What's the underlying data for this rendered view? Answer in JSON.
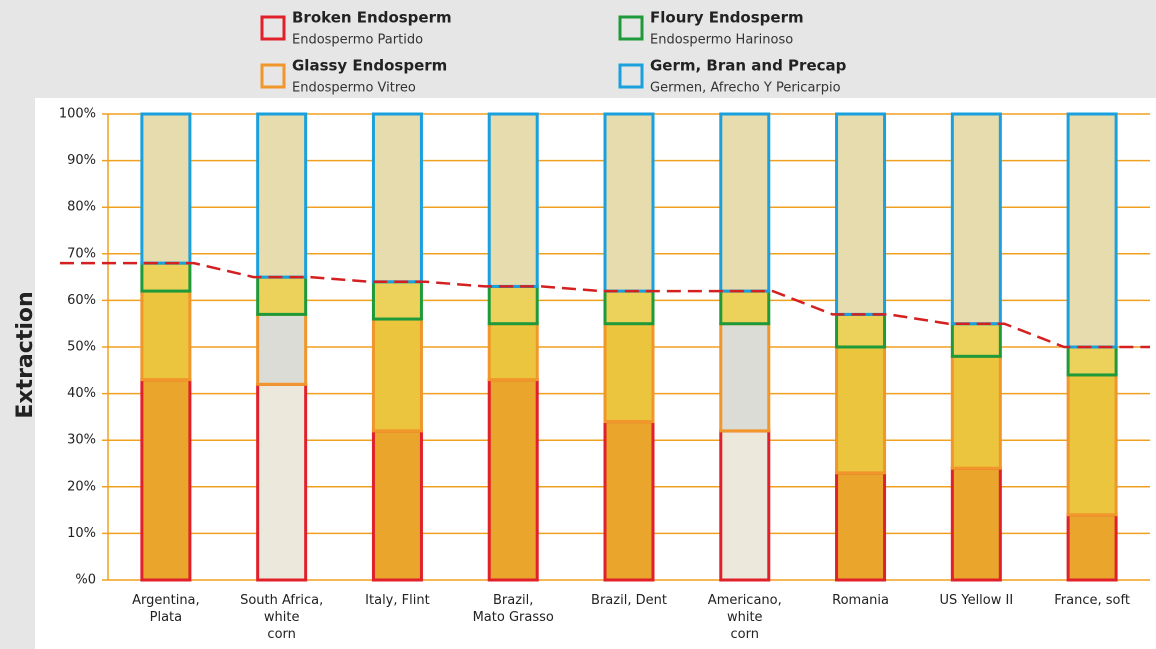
{
  "chart_data": {
    "type": "stacked_bar",
    "y_label": "Extraction",
    "categories": [
      "Argentina,\nPlata",
      "South Africa,\nwhite\ncorn",
      "Italy, Flint",
      "Brazil,\nMato Grasso",
      "Brazil, Dent",
      "Americano,\nwhite\ncorn",
      "Romania",
      "US Yellow II",
      "France, soft"
    ],
    "series": [
      {
        "name": "Broken Endosperm",
        "subname": "Endospermo Partido",
        "color": "#e0202a",
        "fills": [
          "#e9a52c",
          "#ece8dc",
          "#e9a52c",
          "#e9a52c",
          "#e9a52c",
          "#ece8dc",
          "#e9a52c",
          "#e9a52c",
          "#e9a52c"
        ],
        "values": [
          43,
          42,
          32,
          43,
          34,
          32,
          23,
          24,
          14
        ]
      },
      {
        "name": "Glassy Endosperm",
        "subname": "Endospermo Vitreo",
        "color": "#f0962a",
        "fills": [
          "#ecc53e",
          "#dcdcd6",
          "#ecc53e",
          "#ecc53e",
          "#ecc53e",
          "#dcdcd6",
          "#ecc53e",
          "#ecc53e",
          "#ecc53e"
        ],
        "values": [
          19,
          15,
          24,
          12,
          21,
          23,
          27,
          24,
          30
        ]
      },
      {
        "name": "Floury Endosperm",
        "subname": "Endospermo Harinoso",
        "color": "#1f9a3a",
        "fills": [
          "#ecd25a",
          "#ecd25a",
          "#ecd25a",
          "#ecd25a",
          "#ecd25a",
          "#ecd25a",
          "#ecd25a",
          "#ecd25a",
          "#ecd25a"
        ],
        "values": [
          6,
          8,
          8,
          8,
          7,
          7,
          7,
          7,
          6
        ]
      },
      {
        "name": "Germ, Bran and Precap",
        "subname": "Germen, Afrecho Y Pericarpio",
        "color": "#1aa0dc",
        "fills": [
          "#e6dcae",
          "#e6dcae",
          "#e6dcae",
          "#e6dcae",
          "#e6dcae",
          "#e6dcae",
          "#e6dcae",
          "#e6dcae",
          "#e6dcae"
        ],
        "values": [
          32,
          35,
          36,
          37,
          38,
          38,
          43,
          45,
          50
        ]
      }
    ],
    "extraction_line_color": "#d42020",
    "grid_color": "#f0a020",
    "ylim": [
      0,
      100
    ],
    "yticks": [
      {
        "value": 0,
        "label": "%0"
      },
      {
        "value": 10,
        "label": "10%"
      },
      {
        "value": 20,
        "label": "20%"
      },
      {
        "value": 30,
        "label": "30%"
      },
      {
        "value": 40,
        "label": "40%"
      },
      {
        "value": 50,
        "label": "50%"
      },
      {
        "value": 60,
        "label": "60%"
      },
      {
        "value": 70,
        "label": "70%"
      },
      {
        "value": 80,
        "label": "80%"
      },
      {
        "value": 90,
        "label": "90%"
      },
      {
        "value": 100,
        "label": "100%"
      }
    ],
    "grid": true
  }
}
